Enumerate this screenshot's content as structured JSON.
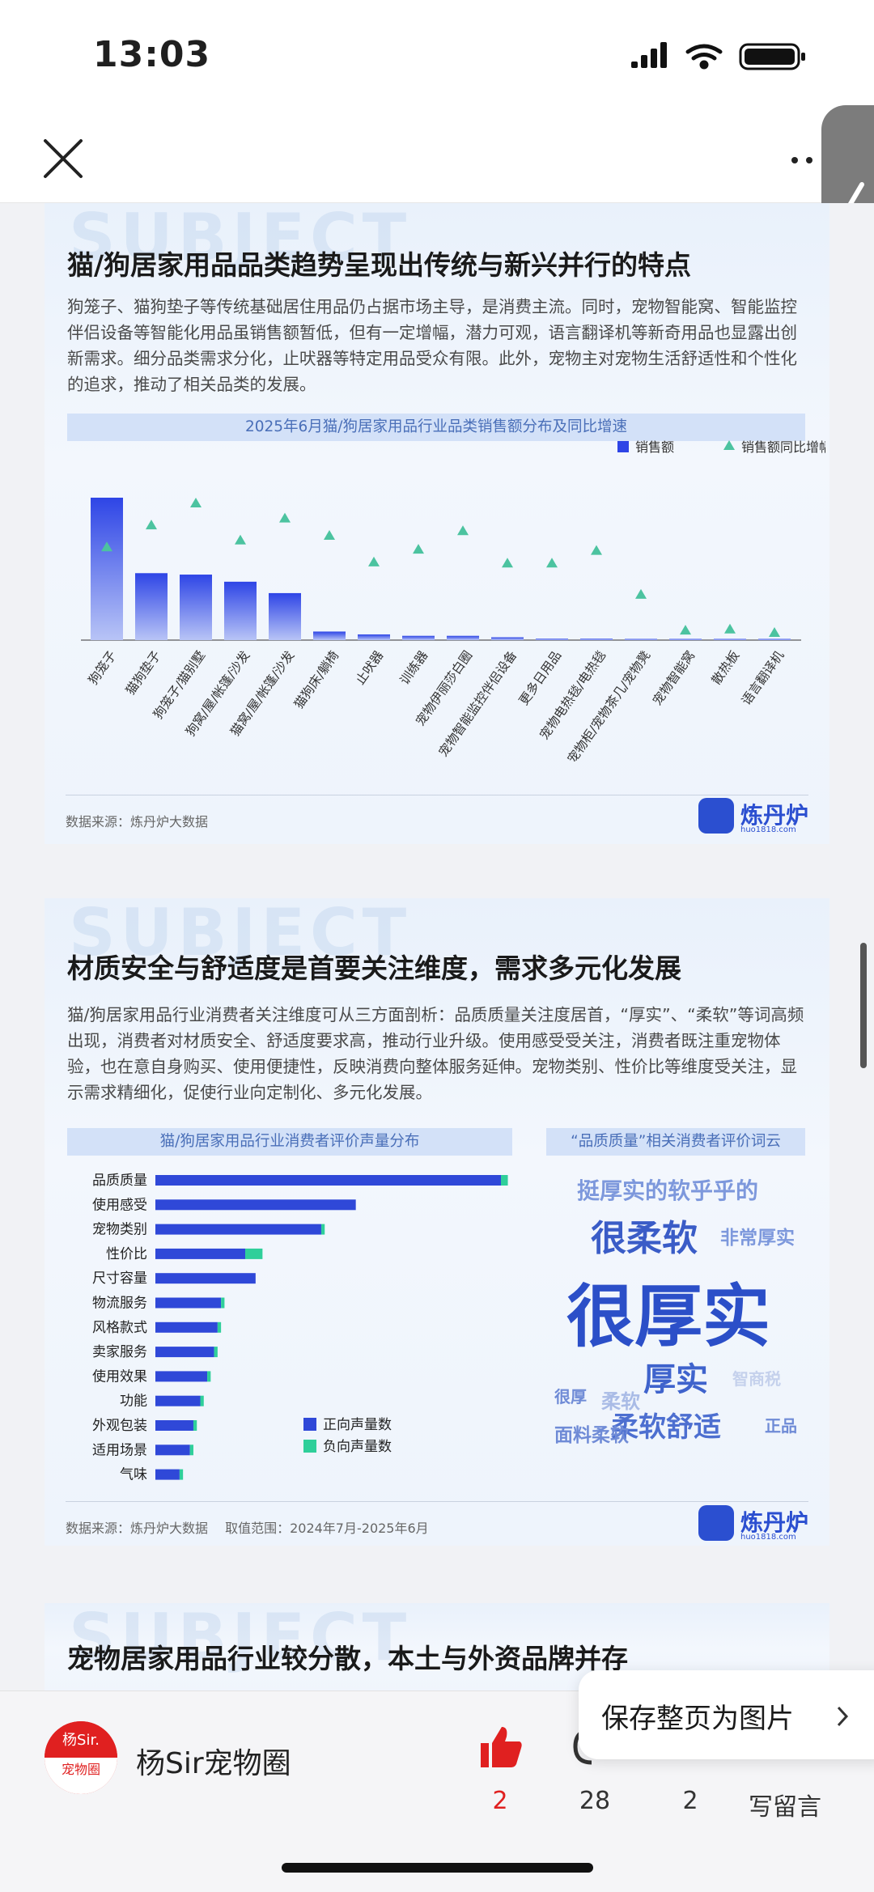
{
  "status_bar": {
    "time": "13:03"
  },
  "popup": {
    "save_label": "保存整页为图片"
  },
  "card1": {
    "watermark": "SUBJECT",
    "title": "猫/狗居家用品品类趋势呈现出传统与新兴并行的特点",
    "text": "狗笼子、猫狗垫子等传统基础居住用品仍占据市场主导，是消费主流。同时，宠物智能窝、智能监控伴侣设备等智能化用品虽销售额暂低，但有一定增幅，潜力可观，语言翻译机等新奇用品也显露出创新需求。细分品类需求分化，止吠器等特定用品受众有限。此外，宠物主对宠物生活舒适性和个性化的追求，推动了相关品类的发展。",
    "chart_title": "2025年6月猫/狗居家用品行业品类销售额分布及同比增速",
    "source": "数据来源：炼丹炉大数据"
  },
  "card2": {
    "watermark": "SUBJECT",
    "title": "材质安全与舒适度是首要关注维度，需求多元化发展",
    "text": "猫/狗居家用品行业消费者关注维度可从三方面剖析：品质质量关注度居首，“厚实”、“柔软”等词高频出现，消费者对材质安全、舒适度要求高，推动行业升级。使用感受受关注，消费者既注重宠物体验，也在意自身购买、使用便捷性，反映消费向整体服务延伸。宠物类别、性价比等维度受关注，显示需求精细化，促使行业向定制化、多元化发展。",
    "chart_title": "猫/狗居家用品行业消费者评价声量分布",
    "cloud_title": "“品质质量”相关消费者评价词云",
    "words": [
      {
        "text": "挺厚实的软乎乎的",
        "color": "#7d98dc"
      },
      {
        "text": "很柔软",
        "color": "#3a5cc7"
      },
      {
        "text": "非常厚实",
        "color": "#7d98dc"
      },
      {
        "text": "很厚实",
        "color": "#2b4fc8"
      },
      {
        "text": "厚实",
        "color": "#3f63cc"
      },
      {
        "text": "智商税",
        "color": "#c5d1ec"
      },
      {
        "text": "很厚",
        "color": "#6f8bd6"
      },
      {
        "text": "柔软",
        "color": "#a9bbe6"
      },
      {
        "text": "柔软舒适",
        "color": "#4d6fd0"
      },
      {
        "text": "正品",
        "color": "#6f8bd6"
      },
      {
        "text": "面料柔软",
        "color": "#6f8bd6"
      }
    ],
    "source": "数据来源：炼丹炉大数据　 取值范围：2024年7月-2025年6月"
  },
  "card3": {
    "watermark": "SUBJECT",
    "title": "宠物居家用品行业较分散，本土与外资品牌并存"
  },
  "logo": {
    "name": "炼丹炉",
    "url": "huo1818.com",
    "mark": "DATA"
  },
  "bottom_bar": {
    "avatar_top": "杨Sir.",
    "avatar_bottom": "宠物圈",
    "author": "杨Sir宠物圈",
    "likes": "2",
    "comments_icon_count": "28",
    "shares": "2",
    "write_comment": "写留言"
  },
  "colors": {
    "bar": "#3a56e6",
    "positive": "#2f48d8",
    "negative": "#2fcf9a",
    "like_red": "#e02020"
  },
  "chart_data": [
    {
      "type": "bar",
      "title": "2025年6月猫/狗居家用品行业品类销售额分布及同比增速",
      "categories": [
        "狗笼子",
        "猫狗垫子",
        "狗笼子/猫别墅",
        "狗窝/屋/帐篷/沙发",
        "猫窝/屋/帐篷/沙发",
        "猫狗床/躺椅",
        "止吠器",
        "训练器",
        "宠物伊丽莎白圈",
        "宠物智能监控伴侣设备",
        "更多日用品",
        "宠物电热毯/电热毯",
        "宠物柜/宠物茶几/宠物凳",
        "宠物智能窝",
        "散热板",
        "语言翻译机"
      ],
      "series": [
        {
          "name": "销售额",
          "type": "bar",
          "values": [
            100,
            47,
            46,
            41,
            33,
            6,
            4,
            3,
            3,
            2,
            1,
            1,
            0.5,
            0.3,
            0.2,
            0.1
          ]
        },
        {
          "name": "销售额同比增幅",
          "type": "scatter",
          "values": [
            74,
            93,
            112,
            80,
            99,
            84,
            61,
            72,
            88,
            60,
            60,
            71,
            33,
            2,
            3,
            0
          ]
        }
      ],
      "legend": "top-right",
      "grid": false
    },
    {
      "type": "bar",
      "title": "猫/狗居家用品行业消费者评价声量分布",
      "orientation": "horizontal",
      "categories": [
        "品质质量",
        "使用感受",
        "宠物类别",
        "性价比",
        "尺寸容量",
        "物流服务",
        "风格款式",
        "卖家服务",
        "使用效果",
        "功能",
        "外观包装",
        "适用场景",
        "气味"
      ],
      "series": [
        {
          "name": "正向声量数",
          "values": [
            100,
            58,
            48,
            26,
            29,
            19,
            18,
            17,
            15,
            13,
            11,
            10,
            7
          ]
        },
        {
          "name": "负向声量数",
          "values": [
            2,
            0,
            1,
            5,
            0,
            1,
            1,
            1,
            1,
            1,
            1,
            1,
            1
          ]
        }
      ],
      "legend": "bottom-right",
      "grid": false
    }
  ]
}
